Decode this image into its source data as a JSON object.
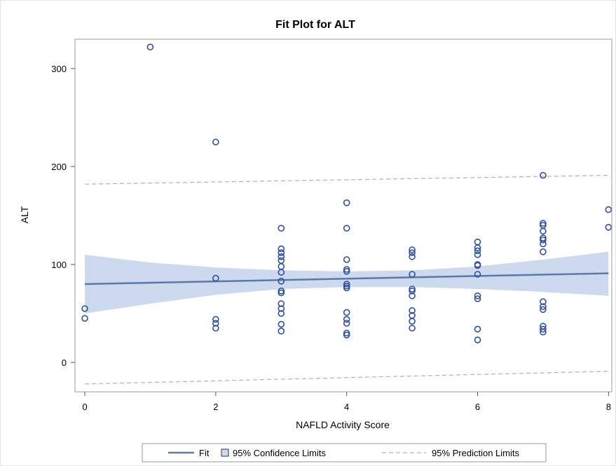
{
  "chart_data": {
    "type": "scatter",
    "title": "Fit Plot for ALT",
    "xlabel": "NAFLD Activity Score",
    "ylabel": "ALT",
    "xlim": [
      -0.15,
      8.05
    ],
    "ylim": [
      -30,
      330
    ],
    "xticks": [
      0,
      2,
      4,
      6,
      8
    ],
    "yticks": [
      0,
      100,
      200,
      300
    ],
    "grid": false,
    "legend_position": "bottom",
    "colors": {
      "points": "#2f4f9a",
      "fit_line": "#5b7aa8",
      "confidence_band": "#cdd9ee",
      "prediction_line": "#b0b0b0",
      "frame": "#9a9a9a"
    },
    "legend": [
      {
        "label": "Fit",
        "symbol": "line"
      },
      {
        "label": "95% Confidence Limits",
        "symbol": "square"
      },
      {
        "label": "95% Prediction Limits",
        "symbol": "dashed-line"
      }
    ],
    "points": [
      {
        "x": 0,
        "y": 55
      },
      {
        "x": 0,
        "y": 45
      },
      {
        "x": 1,
        "y": 322
      },
      {
        "x": 2,
        "y": 225
      },
      {
        "x": 2,
        "y": 86
      },
      {
        "x": 2,
        "y": 44
      },
      {
        "x": 2,
        "y": 40
      },
      {
        "x": 2,
        "y": 35
      },
      {
        "x": 3,
        "y": 137
      },
      {
        "x": 3,
        "y": 116
      },
      {
        "x": 3,
        "y": 112
      },
      {
        "x": 3,
        "y": 108
      },
      {
        "x": 3,
        "y": 104
      },
      {
        "x": 3,
        "y": 98
      },
      {
        "x": 3,
        "y": 92
      },
      {
        "x": 3,
        "y": 83
      },
      {
        "x": 3,
        "y": 73
      },
      {
        "x": 3,
        "y": 71
      },
      {
        "x": 3,
        "y": 60
      },
      {
        "x": 3,
        "y": 55
      },
      {
        "x": 3,
        "y": 50
      },
      {
        "x": 3,
        "y": 39
      },
      {
        "x": 3,
        "y": 32
      },
      {
        "x": 4,
        "y": 163
      },
      {
        "x": 4,
        "y": 137
      },
      {
        "x": 4,
        "y": 105
      },
      {
        "x": 4,
        "y": 95
      },
      {
        "x": 4,
        "y": 93
      },
      {
        "x": 4,
        "y": 80
      },
      {
        "x": 4,
        "y": 78
      },
      {
        "x": 4,
        "y": 76
      },
      {
        "x": 4,
        "y": 51
      },
      {
        "x": 4,
        "y": 44
      },
      {
        "x": 4,
        "y": 40
      },
      {
        "x": 4,
        "y": 30
      },
      {
        "x": 4,
        "y": 28
      },
      {
        "x": 5,
        "y": 115
      },
      {
        "x": 5,
        "y": 112
      },
      {
        "x": 5,
        "y": 108
      },
      {
        "x": 5,
        "y": 90
      },
      {
        "x": 5,
        "y": 75
      },
      {
        "x": 5,
        "y": 73
      },
      {
        "x": 5,
        "y": 68
      },
      {
        "x": 5,
        "y": 53
      },
      {
        "x": 5,
        "y": 48
      },
      {
        "x": 5,
        "y": 42
      },
      {
        "x": 5,
        "y": 35
      },
      {
        "x": 6,
        "y": 123
      },
      {
        "x": 6,
        "y": 117
      },
      {
        "x": 6,
        "y": 114
      },
      {
        "x": 6,
        "y": 110
      },
      {
        "x": 6,
        "y": 100
      },
      {
        "x": 6,
        "y": 99
      },
      {
        "x": 6,
        "y": 90
      },
      {
        "x": 6,
        "y": 68
      },
      {
        "x": 6,
        "y": 65
      },
      {
        "x": 6,
        "y": 34
      },
      {
        "x": 6,
        "y": 23
      },
      {
        "x": 7,
        "y": 191
      },
      {
        "x": 7,
        "y": 142
      },
      {
        "x": 7,
        "y": 140
      },
      {
        "x": 7,
        "y": 134
      },
      {
        "x": 7,
        "y": 127
      },
      {
        "x": 7,
        "y": 125
      },
      {
        "x": 7,
        "y": 121
      },
      {
        "x": 7,
        "y": 113
      },
      {
        "x": 7,
        "y": 62
      },
      {
        "x": 7,
        "y": 57
      },
      {
        "x": 7,
        "y": 54
      },
      {
        "x": 7,
        "y": 37
      },
      {
        "x": 7,
        "y": 34
      },
      {
        "x": 7,
        "y": 31
      },
      {
        "x": 8,
        "y": 156
      },
      {
        "x": 8,
        "y": 138
      }
    ],
    "fit": {
      "x": [
        0,
        8
      ],
      "y": [
        80,
        91
      ]
    },
    "confidence_limits": {
      "x": [
        0,
        1,
        2,
        3,
        4,
        5,
        6,
        7,
        8
      ],
      "lower": [
        50,
        60,
        69,
        75,
        77,
        77,
        75,
        72,
        68
      ],
      "upper": [
        110,
        102,
        97,
        94,
        93,
        94,
        98,
        105,
        113
      ]
    },
    "prediction_limits": {
      "x": [
        0,
        8
      ],
      "lower": [
        -22,
        -9
      ],
      "upper": [
        182,
        191
      ]
    }
  }
}
